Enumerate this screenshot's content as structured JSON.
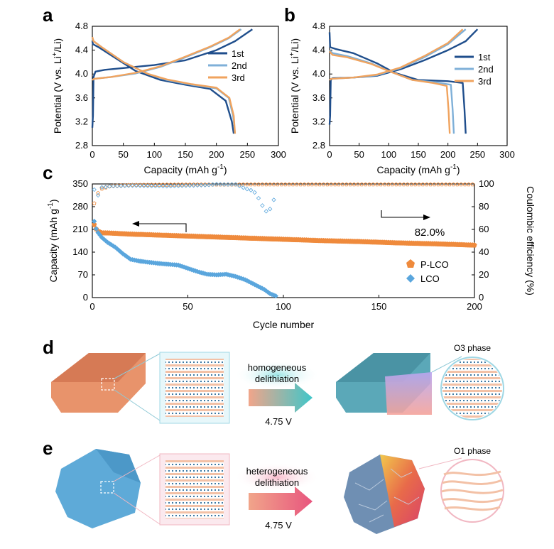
{
  "panel_letters": {
    "a": "a",
    "b": "b",
    "c": "c",
    "d": "d",
    "e": "e"
  },
  "colors": {
    "cycle1": "#1f4e8c",
    "cycle2": "#7fb0d8",
    "cycle3": "#f0a35e",
    "plco": "#ef8a3c",
    "lco": "#5aa6dd"
  },
  "chart_data": [
    {
      "type": "line",
      "panel": "a",
      "xlabel": "Capacity (mAh g",
      "xlabel_sup": "-1",
      "xlabel_end": ")",
      "ylabel_pre": "Potential (V vs. Li",
      "ylabel_sup": "+",
      "ylabel_post": "/Li)",
      "xlim": [
        0,
        300
      ],
      "ylim": [
        2.8,
        4.8
      ],
      "x_ticks": [
        "0",
        "50",
        "100",
        "150",
        "200",
        "250",
        "300"
      ],
      "y_ticks": [
        "2.8",
        "3.2",
        "3.6",
        "4.0",
        "4.4",
        "4.8"
      ],
      "legend_position": "top-right",
      "series": [
        {
          "name": "1st",
          "color_key": "cycle1",
          "charge": [
            [
              0,
              3.1
            ],
            [
              1,
              3.3
            ],
            [
              2,
              3.95
            ],
            [
              5,
              4.04
            ],
            [
              20,
              4.07
            ],
            [
              50,
              4.1
            ],
            [
              100,
              4.15
            ],
            [
              150,
              4.23
            ],
            [
              200,
              4.4
            ],
            [
              230,
              4.55
            ],
            [
              258,
              4.75
            ]
          ],
          "discharge": [
            [
              228,
              3.0
            ],
            [
              225,
              3.2
            ],
            [
              215,
              3.55
            ],
            [
              190,
              3.75
            ],
            [
              150,
              3.82
            ],
            [
              110,
              3.9
            ],
            [
              70,
              4.05
            ],
            [
              40,
              4.25
            ],
            [
              10,
              4.45
            ],
            [
              1,
              4.5
            ],
            [
              0,
              4.55
            ]
          ]
        },
        {
          "name": "2nd",
          "color_key": "cycle2",
          "charge": [
            [
              0,
              3.9
            ],
            [
              3,
              3.92
            ],
            [
              30,
              3.95
            ],
            [
              70,
              4.01
            ],
            [
              110,
              4.12
            ],
            [
              150,
              4.28
            ],
            [
              190,
              4.45
            ],
            [
              220,
              4.6
            ],
            [
              240,
              4.75
            ]
          ],
          "discharge": [
            [
              230,
              3.0
            ],
            [
              227,
              3.3
            ],
            [
              220,
              3.6
            ],
            [
              200,
              3.76
            ],
            [
              160,
              3.82
            ],
            [
              120,
              3.9
            ],
            [
              90,
              4.0
            ],
            [
              50,
              4.2
            ],
            [
              15,
              4.45
            ],
            [
              2,
              4.55
            ],
            [
              0,
              4.6
            ]
          ]
        },
        {
          "name": "3rd",
          "color_key": "cycle3",
          "charge": [
            [
              0,
              3.9
            ],
            [
              3,
              3.92
            ],
            [
              30,
              3.95
            ],
            [
              70,
              4.02
            ],
            [
              110,
              4.13
            ],
            [
              150,
              4.29
            ],
            [
              190,
              4.46
            ],
            [
              220,
              4.61
            ],
            [
              238,
              4.75
            ]
          ],
          "discharge": [
            [
              230,
              3.0
            ],
            [
              228,
              3.3
            ],
            [
              221,
              3.6
            ],
            [
              200,
              3.77
            ],
            [
              160,
              3.83
            ],
            [
              120,
              3.91
            ],
            [
              90,
              4.0
            ],
            [
              50,
              4.2
            ],
            [
              15,
              4.45
            ],
            [
              2,
              4.55
            ],
            [
              0,
              4.62
            ]
          ]
        }
      ]
    },
    {
      "type": "line",
      "panel": "b",
      "xlabel": "Capacity (mAh g",
      "xlabel_sup": "-1",
      "xlabel_end": ")",
      "ylabel_pre": "Potential (V vs. Li",
      "ylabel_sup": "+",
      "ylabel_post": "/Li)",
      "xlim": [
        0,
        300
      ],
      "ylim": [
        2.8,
        4.8
      ],
      "x_ticks": [
        "0",
        "50",
        "100",
        "150",
        "200",
        "250",
        "300"
      ],
      "y_ticks": [
        "2.8",
        "3.2",
        "3.6",
        "4.0",
        "4.4",
        "4.8"
      ],
      "legend_position": "top-right",
      "series": [
        {
          "name": "1st",
          "color_key": "cycle1",
          "charge": [
            [
              0,
              3.15
            ],
            [
              1,
              3.3
            ],
            [
              2,
              3.9
            ],
            [
              5,
              3.93
            ],
            [
              40,
              3.94
            ],
            [
              80,
              3.97
            ],
            [
              120,
              4.08
            ],
            [
              160,
              4.23
            ],
            [
              200,
              4.4
            ],
            [
              230,
              4.55
            ],
            [
              250,
              4.75
            ]
          ],
          "discharge": [
            [
              230,
              3.0
            ],
            [
              228,
              3.4
            ],
            [
              225,
              3.85
            ],
            [
              200,
              3.88
            ],
            [
              150,
              3.9
            ],
            [
              110,
              4.02
            ],
            [
              80,
              4.18
            ],
            [
              40,
              4.35
            ],
            [
              10,
              4.42
            ],
            [
              1,
              4.45
            ],
            [
              0,
              4.7
            ]
          ]
        },
        {
          "name": "2nd",
          "color_key": "cycle2",
          "charge": [
            [
              0,
              3.9
            ],
            [
              3,
              3.92
            ],
            [
              40,
              3.94
            ],
            [
              80,
              3.98
            ],
            [
              120,
              4.1
            ],
            [
              160,
              4.28
            ],
            [
              200,
              4.5
            ],
            [
              230,
              4.75
            ]
          ],
          "discharge": [
            [
              210,
              3.0
            ],
            [
              208,
              3.4
            ],
            [
              205,
              3.82
            ],
            [
              180,
              3.86
            ],
            [
              140,
              3.9
            ],
            [
              100,
              4.05
            ],
            [
              70,
              4.18
            ],
            [
              30,
              4.3
            ],
            [
              5,
              4.35
            ],
            [
              0,
              4.4
            ]
          ]
        },
        {
          "name": "3rd",
          "color_key": "cycle3",
          "charge": [
            [
              0,
              3.9
            ],
            [
              3,
              3.92
            ],
            [
              40,
              3.94
            ],
            [
              80,
              3.99
            ],
            [
              120,
              4.11
            ],
            [
              160,
              4.3
            ],
            [
              200,
              4.52
            ],
            [
              225,
              4.75
            ]
          ],
          "discharge": [
            [
              203,
              3.0
            ],
            [
              201,
              3.4
            ],
            [
              198,
              3.8
            ],
            [
              175,
              3.85
            ],
            [
              140,
              3.9
            ],
            [
              100,
              4.05
            ],
            [
              70,
              4.17
            ],
            [
              30,
              4.28
            ],
            [
              5,
              4.32
            ],
            [
              0,
              4.38
            ]
          ]
        }
      ]
    },
    {
      "type": "scatter",
      "panel": "c",
      "xlabel": "Cycle number",
      "ylabel": "Capacity (mAh g",
      "ylabel_sup": "-1",
      "ylabel_end": ")",
      "y2label": "Coulombic efficiency (%)",
      "xlim": [
        0,
        200
      ],
      "ylim": [
        0,
        350
      ],
      "y2lim": [
        0,
        100
      ],
      "x_ticks": [
        "0",
        "50",
        "100",
        "150",
        "200"
      ],
      "y_ticks": [
        "0",
        "70",
        "140",
        "210",
        "280",
        "350"
      ],
      "y2_ticks": [
        "0",
        "20",
        "40",
        "60",
        "80",
        "100"
      ],
      "annotation": "82.0%",
      "legend_position": "bottom-right",
      "series": [
        {
          "name": "P-LCO",
          "color_key": "plco",
          "axis": "capacity",
          "points": [
            [
              1,
              225
            ],
            [
              2,
              212
            ],
            [
              3,
              205
            ],
            [
              5,
              200
            ],
            [
              10,
              199
            ],
            [
              20,
              196
            ],
            [
              40,
              192
            ],
            [
              60,
              188
            ],
            [
              80,
              184
            ],
            [
              100,
              180
            ],
            [
              120,
              176
            ],
            [
              140,
              173
            ],
            [
              160,
              169
            ],
            [
              180,
              166
            ],
            [
              200,
              162
            ]
          ]
        },
        {
          "name": "LCO",
          "color_key": "lco",
          "axis": "capacity",
          "points": [
            [
              1,
              235
            ],
            [
              2,
              212
            ],
            [
              3,
              200
            ],
            [
              5,
              185
            ],
            [
              8,
              170
            ],
            [
              12,
              155
            ],
            [
              16,
              135
            ],
            [
              20,
              118
            ],
            [
              25,
              112
            ],
            [
              35,
              105
            ],
            [
              45,
              100
            ],
            [
              50,
              90
            ],
            [
              55,
              80
            ],
            [
              60,
              72
            ],
            [
              65,
              70
            ],
            [
              70,
              72
            ],
            [
              75,
              65
            ],
            [
              80,
              55
            ],
            [
              85,
              40
            ],
            [
              90,
              25
            ],
            [
              93,
              12
            ],
            [
              96,
              5
            ]
          ]
        },
        {
          "name": "P-LCO CE",
          "color_key": "plco",
          "axis": "ce",
          "points": [
            [
              1,
              83
            ],
            [
              2,
              87
            ],
            [
              3,
              92
            ],
            [
              5,
              96
            ],
            [
              10,
              98.5
            ],
            [
              20,
              99.2
            ],
            [
              50,
              99.6
            ],
            [
              100,
              99.7
            ],
            [
              150,
              99.7
            ],
            [
              200,
              99.7
            ]
          ]
        },
        {
          "name": "LCO CE",
          "color_key": "lco",
          "axis": "ce",
          "points": [
            [
              1,
              95
            ],
            [
              3,
              90
            ],
            [
              5,
              97
            ],
            [
              10,
              98
            ],
            [
              20,
              98.5
            ],
            [
              30,
              98.2
            ],
            [
              40,
              98
            ],
            [
              50,
              98.5
            ],
            [
              60,
              99
            ],
            [
              65,
              99.8
            ],
            [
              70,
              99.5
            ],
            [
              75,
              99.7
            ],
            [
              80,
              96
            ],
            [
              84,
              94
            ],
            [
              86,
              91
            ],
            [
              88,
              84
            ],
            [
              90,
              78
            ],
            [
              92,
              74
            ],
            [
              95,
              86
            ]
          ]
        }
      ]
    }
  ],
  "legends": {
    "a": [
      "1st",
      "2nd",
      "3rd"
    ],
    "b": [
      "1st",
      "2nd",
      "3rd"
    ],
    "c": [
      "P-LCO",
      "LCO"
    ]
  },
  "schematic_d": {
    "arrow_text_line1": "homogeneous",
    "arrow_text_line2": "delithiation",
    "voltage": "4.75 V",
    "phase_label": "O3 phase"
  },
  "schematic_e": {
    "arrow_text_line1": "heterogeneous",
    "arrow_text_line2": "delithiation",
    "voltage": "4.75 V",
    "phase_label": "O1 phase"
  }
}
